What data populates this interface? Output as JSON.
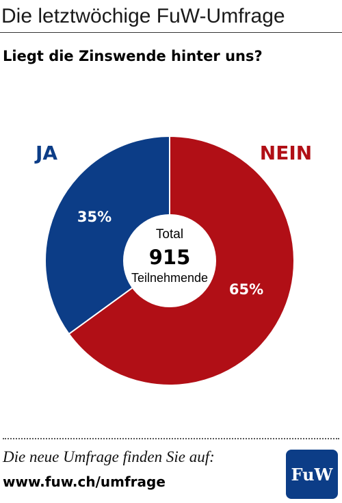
{
  "header": {
    "title": "Die letztwöchige FuW-Umfrage"
  },
  "question": "Liegt die Zinswende hinter uns?",
  "chart_data": {
    "type": "pie",
    "variant": "donut",
    "categories": [
      "JA",
      "NEIN"
    ],
    "values": [
      35,
      65
    ],
    "labels": [
      "35%",
      "65%"
    ],
    "colors": [
      "#0c3d87",
      "#b10f16"
    ],
    "center": {
      "label_top": "Total",
      "value": "915",
      "label_bottom": "Teilnehmende"
    }
  },
  "footer": {
    "text": "Die neue Umfrage finden Sie auf:",
    "url": "www.fuw.ch/umfrage",
    "logo_text": "FuW"
  }
}
